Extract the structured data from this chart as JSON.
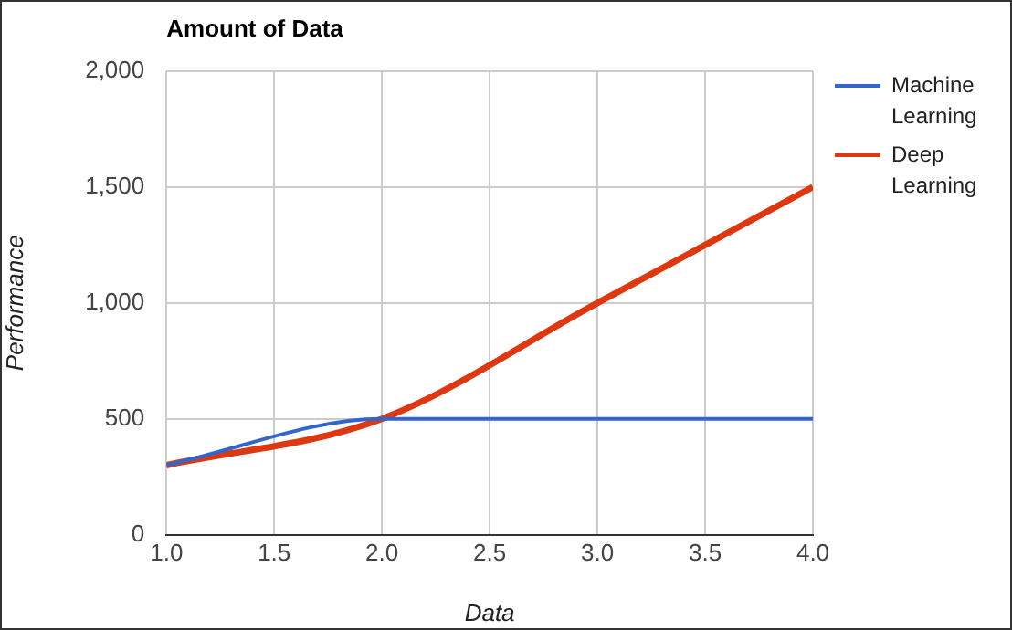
{
  "chart_data": {
    "type": "line",
    "title": "Amount of Data",
    "xlabel": "Data",
    "ylabel": "Performance",
    "x": [
      1,
      2,
      3,
      4
    ],
    "series": [
      {
        "name": "Machine Learning",
        "color": "#3366cc",
        "values": [
          300,
          500,
          500,
          500
        ]
      },
      {
        "name": "Deep Learning",
        "color": "#dc3912",
        "values": [
          300,
          500,
          1000,
          1500
        ]
      }
    ],
    "xlim": [
      1,
      4
    ],
    "xticks": [
      {
        "value": 1,
        "label": "1.0"
      },
      {
        "value": 1.5,
        "label": "1.5"
      },
      {
        "value": 2,
        "label": "2.0"
      },
      {
        "value": 2.5,
        "label": "2.5"
      },
      {
        "value": 3,
        "label": "3.0"
      },
      {
        "value": 3.5,
        "label": "3.5"
      },
      {
        "value": 4,
        "label": "4.0"
      }
    ],
    "ylim": [
      0,
      2000
    ],
    "yticks": [
      0,
      500,
      {
        "value": 1000,
        "label": "1,000"
      },
      {
        "value": 1500,
        "label": "1,500"
      },
      {
        "value": 2000,
        "label": "2,000"
      }
    ],
    "grid": true,
    "legend": "top right",
    "marker": "none",
    "line_style": "solid"
  }
}
